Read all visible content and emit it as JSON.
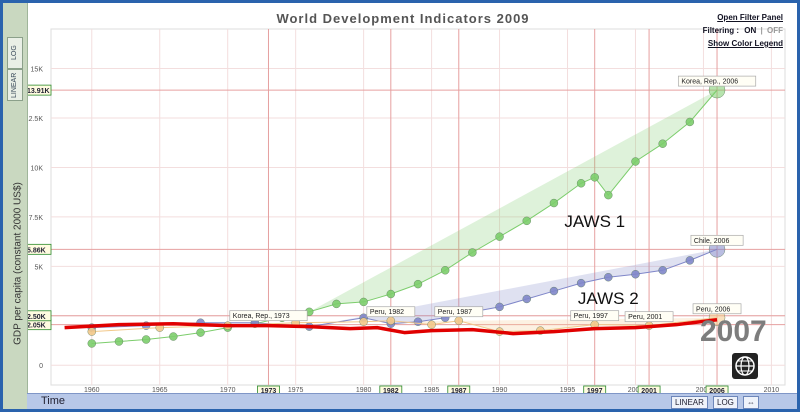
{
  "title": "World Development Indicators 2009",
  "panel": {
    "filter_link": "Open Filter Panel",
    "filtering_label": "Filtering :",
    "on": "ON",
    "off": "OFF",
    "color_legend_link": "Show Color Legend"
  },
  "scale_buttons": {
    "linear": "LINEAR",
    "log": "LOG"
  },
  "bottom_bar": {
    "time_label": "Time",
    "linear": "LINEAR",
    "log": "LOG",
    "arrows": "⇔"
  },
  "current_year": "2007",
  "colors": {
    "korea": "#7ccd6c",
    "chile": "#7f86c9",
    "peru": "#f2c88a",
    "annotation": "#e00000",
    "grid": "#f1c9c9"
  },
  "icons": {
    "globe": "world-bank-logo-icon"
  },
  "chart_data": {
    "type": "scatter",
    "ylabel": "GDP per capita (constant 2000 US$)",
    "xlabel": "Time",
    "xlim": [
      1957,
      2011
    ],
    "ylim": [
      -1000,
      17000
    ],
    "x_ticks": [
      "1960",
      "1965",
      "1970",
      "1975",
      "1980",
      "1985",
      "1990",
      "1995",
      "2000",
      "2005",
      "2010"
    ],
    "y_ticks": [
      {
        "v": 0,
        "label": "0"
      },
      {
        "v": 2500,
        "label": "2.5K"
      },
      {
        "v": 5000,
        "label": "5K"
      },
      {
        "v": 7500,
        "label": "7.5K"
      },
      {
        "v": 10000,
        "label": "10K"
      },
      {
        "v": 12500,
        "label": "12.5K"
      },
      {
        "v": 15000,
        "label": "15K"
      }
    ],
    "highlight_years": [
      "1973",
      "1982",
      "1987",
      "1997",
      "2001",
      "2006"
    ],
    "highlight_y_values": [
      {
        "v": 13910,
        "label": "13.91K"
      },
      {
        "v": 5860,
        "label": "5.86K"
      },
      {
        "v": 2050,
        "label": "2.05K"
      },
      {
        "v": 2500,
        "label": "2.50K"
      }
    ],
    "series": [
      {
        "name": "Korea, Rep.",
        "color": "#7ccd6c",
        "x": [
          1960,
          1962,
          1964,
          1966,
          1968,
          1970,
          1972,
          1974,
          1976,
          1978,
          1980,
          1982,
          1984,
          1986,
          1988,
          1990,
          1992,
          1994,
          1996,
          1997,
          1998,
          2000,
          2002,
          2004,
          2006
        ],
        "y": [
          1100,
          1200,
          1300,
          1450,
          1650,
          1900,
          2100,
          2400,
          2700,
          3100,
          3200,
          3600,
          4100,
          4800,
          5700,
          6500,
          7300,
          8200,
          9200,
          9500,
          8600,
          10300,
          11200,
          12300,
          13910
        ]
      },
      {
        "name": "Chile",
        "color": "#7f86c9",
        "x": [
          1960,
          1964,
          1968,
          1972,
          1976,
          1980,
          1982,
          1984,
          1986,
          1988,
          1990,
          1992,
          1994,
          1996,
          1998,
          2000,
          2002,
          2004,
          2006
        ],
        "y": [
          1900,
          2000,
          2150,
          2150,
          1950,
          2400,
          2100,
          2200,
          2400,
          2700,
          2950,
          3350,
          3750,
          4150,
          4450,
          4600,
          4800,
          5300,
          5860
        ]
      },
      {
        "name": "Peru",
        "color": "#f2c88a",
        "x": [
          1960,
          1965,
          1970,
          1975,
          1980,
          1982,
          1985,
          1987,
          1990,
          1993,
          1997,
          2001,
          2006
        ],
        "y": [
          1700,
          1900,
          2000,
          2150,
          2200,
          2250,
          2050,
          2250,
          1700,
          1750,
          2050,
          2000,
          2400
        ]
      }
    ],
    "point_labels": [
      {
        "text": "Korea, Rep., 2006",
        "x": 2006,
        "y": 13910
      },
      {
        "text": "Chile, 2006",
        "x": 2006,
        "y": 5860
      },
      {
        "text": "Korea, Rep., 1973",
        "x": 1973,
        "y": 2050
      },
      {
        "text": "Peru, 1982",
        "x": 1982,
        "y": 2250
      },
      {
        "text": "Peru, 1987",
        "x": 1987,
        "y": 2250
      },
      {
        "text": "Peru, 1997",
        "x": 1997,
        "y": 2050
      },
      {
        "text": "Peru, 2001",
        "x": 2001,
        "y": 2000
      },
      {
        "text": "Peru, 2006",
        "x": 2006,
        "y": 2400
      }
    ],
    "annotations": [
      {
        "text": "JAWS 1",
        "x": 1997,
        "y": 7000
      },
      {
        "text": "JAWS 2",
        "x": 1998,
        "y": 3100
      }
    ],
    "jaws_line": {
      "x": [
        1958,
        1962,
        1966,
        1970,
        1973,
        1976,
        1979,
        1981,
        1983,
        1985,
        1988,
        1991,
        1994,
        1997,
        2000,
        2003,
        2006
      ],
      "y": [
        1900,
        2050,
        2100,
        2000,
        2000,
        1950,
        1850,
        1900,
        1650,
        1750,
        1800,
        1600,
        1700,
        1850,
        1900,
        2050,
        2300
      ]
    }
  }
}
